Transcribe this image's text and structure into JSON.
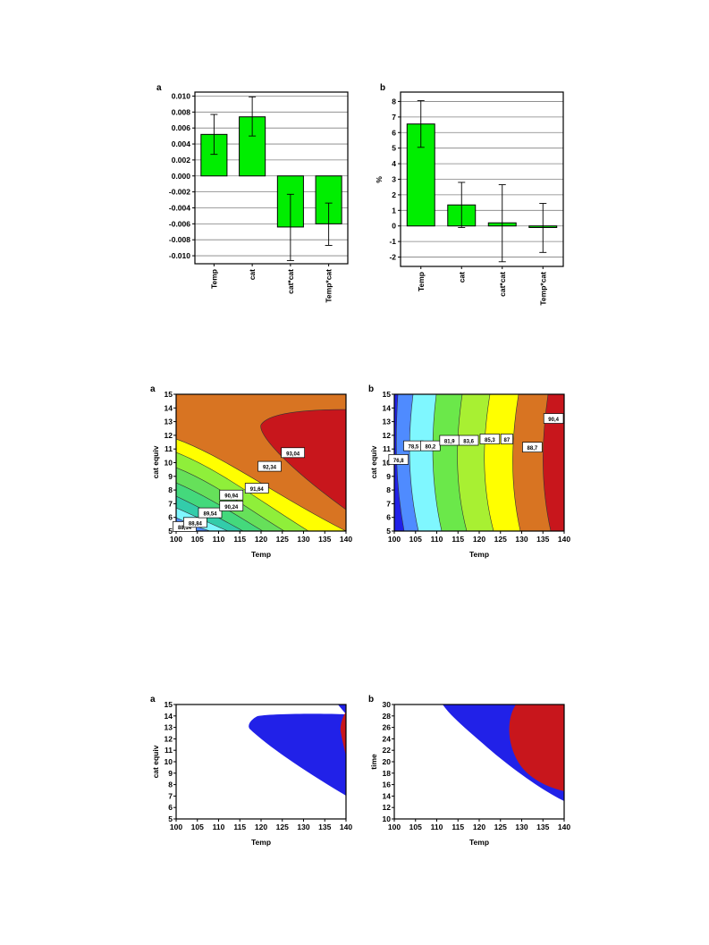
{
  "chart_data": [
    {
      "id": "bar-a",
      "type": "bar",
      "panel_label": "a",
      "categories": [
        "Temp",
        "cat",
        "cat*cat",
        "Temp*cat"
      ],
      "values": [
        0.0052,
        0.0074,
        -0.0064,
        -0.006
      ],
      "error_low": [
        0.0027,
        0.005,
        -0.0106,
        -0.0087
      ],
      "error_high": [
        0.0077,
        0.0099,
        -0.0023,
        -0.0034
      ],
      "ylim": [
        -0.011,
        0.0105
      ],
      "yticks": [
        "0.010",
        "0.008",
        "0.006",
        "0.004",
        "0.002",
        "0.000",
        "-0.002",
        "-0.004",
        "-0.006",
        "-0.008",
        "-0.010"
      ],
      "ytick_values": [
        0.01,
        0.008,
        0.006,
        0.004,
        0.002,
        0.0,
        -0.002,
        -0.004,
        -0.006,
        -0.008,
        -0.01
      ],
      "ylabel": "",
      "bar_color": "#00ee00",
      "grid": true
    },
    {
      "id": "bar-b",
      "type": "bar",
      "panel_label": "b",
      "categories": [
        "Temp",
        "cat",
        "cat*cat",
        "Temp*cat"
      ],
      "values": [
        6.55,
        1.35,
        0.2,
        -0.1
      ],
      "error_low": [
        5.05,
        -0.1,
        -2.3,
        -1.7
      ],
      "error_high": [
        8.05,
        2.8,
        2.65,
        1.45
      ],
      "ylim": [
        -2.6,
        8.6
      ],
      "yticks": [
        "8",
        "7",
        "6",
        "5",
        "4",
        "3",
        "2",
        "1",
        "0",
        "-1",
        "-2"
      ],
      "ytick_values": [
        8,
        7,
        6,
        5,
        4,
        3,
        2,
        1,
        0,
        -1,
        -2
      ],
      "ylabel": "%",
      "bar_color": "#00ee00",
      "grid": true
    },
    {
      "id": "contour-a",
      "type": "heatmap",
      "panel_label": "a",
      "xlabel": "Temp",
      "ylabel": "cat equiv",
      "xlim": [
        100,
        140
      ],
      "ylim": [
        5,
        15
      ],
      "xticks": [
        "100",
        "105",
        "110",
        "115",
        "120",
        "125",
        "130",
        "135",
        "140"
      ],
      "yticks": [
        "5",
        "6",
        "7",
        "8",
        "9",
        "10",
        "11",
        "12",
        "13",
        "14",
        "15"
      ],
      "contour_levels": [
        "88,14",
        "88,84",
        "89,54",
        "90,24",
        "90,94",
        "91,64",
        "92,34",
        "93,04"
      ]
    },
    {
      "id": "contour-b",
      "type": "heatmap",
      "panel_label": "b",
      "xlabel": "Temp",
      "ylabel": "cat equiv",
      "xlim": [
        100,
        140
      ],
      "ylim": [
        5,
        15
      ],
      "xticks": [
        "100",
        "105",
        "110",
        "115",
        "120",
        "125",
        "130",
        "135",
        "140"
      ],
      "yticks": [
        "5",
        "6",
        "7",
        "8",
        "9",
        "10",
        "11",
        "12",
        "13",
        "14",
        "15"
      ],
      "contour_levels": [
        "76,8",
        "78,5",
        "80,2",
        "81,9",
        "83,6",
        "85,3",
        "87",
        "88,7",
        "90,4"
      ]
    },
    {
      "id": "region-a",
      "type": "heatmap",
      "panel_label": "a",
      "xlabel": "Temp",
      "ylabel": "cat equiv",
      "xlim": [
        100,
        140
      ],
      "ylim": [
        5,
        15
      ],
      "xticks": [
        "100",
        "105",
        "110",
        "115",
        "120",
        "125",
        "130",
        "135",
        "140"
      ],
      "yticks": [
        "5",
        "6",
        "7",
        "8",
        "9",
        "10",
        "11",
        "12",
        "13",
        "14",
        "15"
      ]
    },
    {
      "id": "region-b",
      "type": "heatmap",
      "panel_label": "b",
      "xlabel": "Temp",
      "ylabel": "time",
      "xlim": [
        100,
        140
      ],
      "ylim": [
        10,
        30
      ],
      "xticks": [
        "100",
        "105",
        "110",
        "115",
        "120",
        "125",
        "130",
        "135",
        "140"
      ],
      "yticks": [
        "10",
        "12",
        "14",
        "16",
        "18",
        "20",
        "22",
        "24",
        "26",
        "28",
        "30"
      ]
    }
  ],
  "colors": {
    "green": "#00ee00",
    "blue": "#2121e8",
    "red": "#c8161c",
    "orange": "#d87422",
    "yellow": "#ffff00",
    "lime": "#8fef3a",
    "cyan": "#7ff7ff",
    "light_blue": "#4f8bff"
  }
}
